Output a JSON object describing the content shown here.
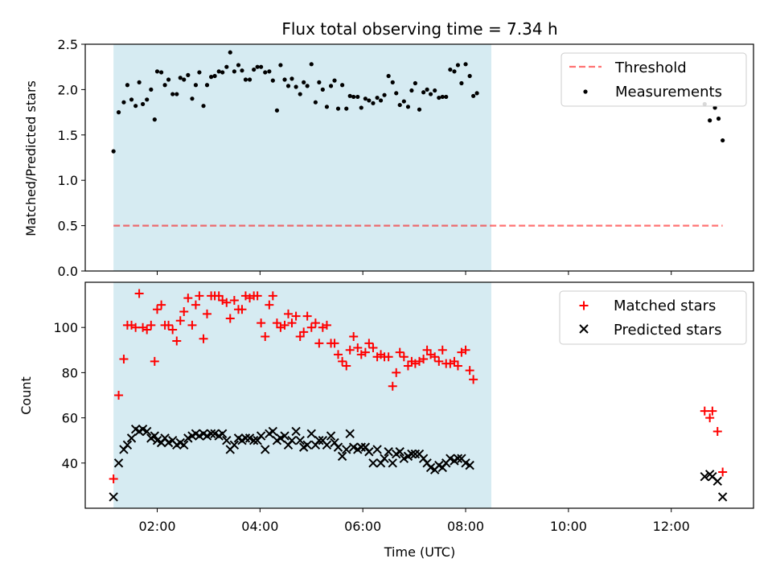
{
  "chart_data": {
    "type": "scatter",
    "title": "Flux total observing time = 7.34 h",
    "xlabel": "Time (UTC)",
    "x_ticks": [
      {
        "h": 2,
        "label": "02:00"
      },
      {
        "h": 4,
        "label": "04:00"
      },
      {
        "h": 6,
        "label": "06:00"
      },
      {
        "h": 8,
        "label": "08:00"
      },
      {
        "h": 10,
        "label": "10:00"
      },
      {
        "h": 12,
        "label": "12:00"
      }
    ],
    "xlim": [
      0.6,
      13.6
    ],
    "observing_window": [
      1.15,
      8.5
    ],
    "colors": {
      "span": "#add8e6",
      "threshold": "#ff0000",
      "measurements": "#000000",
      "matched": "#ff0000",
      "predicted": "#000000"
    },
    "top": {
      "ylabel": "Matched/Predicted stars",
      "ylim": [
        0,
        2.5
      ],
      "y_ticks": [
        "0.0",
        "0.5",
        "1.0",
        "1.5",
        "2.0",
        "2.5"
      ],
      "threshold": {
        "label": "Threshold",
        "value": 0.5,
        "x_range": [
          1.15,
          13.0
        ]
      },
      "measurements_label": "Measurements",
      "measurements": [
        [
          1.15,
          1.32
        ],
        [
          1.25,
          1.75
        ],
        [
          1.35,
          1.86
        ],
        [
          1.42,
          2.05
        ],
        [
          1.5,
          1.89
        ],
        [
          1.58,
          1.82
        ],
        [
          1.65,
          2.08
        ],
        [
          1.72,
          1.84
        ],
        [
          1.8,
          1.89
        ],
        [
          1.88,
          2.0
        ],
        [
          1.95,
          1.67
        ],
        [
          2.0,
          2.2
        ],
        [
          2.08,
          2.19
        ],
        [
          2.15,
          2.05
        ],
        [
          2.22,
          2.11
        ],
        [
          2.3,
          1.95
        ],
        [
          2.38,
          1.95
        ],
        [
          2.45,
          2.13
        ],
        [
          2.52,
          2.11
        ],
        [
          2.6,
          2.16
        ],
        [
          2.68,
          1.9
        ],
        [
          2.75,
          2.05
        ],
        [
          2.82,
          2.19
        ],
        [
          2.9,
          1.82
        ],
        [
          2.97,
          2.05
        ],
        [
          3.05,
          2.14
        ],
        [
          3.12,
          2.15
        ],
        [
          3.2,
          2.2
        ],
        [
          3.27,
          2.19
        ],
        [
          3.35,
          2.25
        ],
        [
          3.42,
          2.41
        ],
        [
          3.5,
          2.2
        ],
        [
          3.58,
          2.27
        ],
        [
          3.65,
          2.21
        ],
        [
          3.72,
          2.11
        ],
        [
          3.8,
          2.11
        ],
        [
          3.88,
          2.22
        ],
        [
          3.95,
          2.25
        ],
        [
          4.02,
          2.25
        ],
        [
          4.1,
          2.19
        ],
        [
          4.18,
          2.2
        ],
        [
          4.25,
          2.1
        ],
        [
          4.33,
          1.77
        ],
        [
          4.4,
          2.27
        ],
        [
          4.48,
          2.11
        ],
        [
          4.55,
          2.04
        ],
        [
          4.62,
          2.12
        ],
        [
          4.7,
          2.03
        ],
        [
          4.78,
          1.95
        ],
        [
          4.85,
          2.08
        ],
        [
          4.92,
          2.04
        ],
        [
          5.0,
          2.28
        ],
        [
          5.08,
          1.86
        ],
        [
          5.15,
          2.08
        ],
        [
          5.22,
          2.0
        ],
        [
          5.3,
          1.81
        ],
        [
          5.38,
          2.04
        ],
        [
          5.45,
          2.1
        ],
        [
          5.52,
          1.79
        ],
        [
          5.6,
          2.05
        ],
        [
          5.68,
          1.79
        ],
        [
          5.75,
          1.93
        ],
        [
          5.82,
          1.92
        ],
        [
          5.9,
          1.92
        ],
        [
          5.97,
          1.8
        ],
        [
          6.05,
          1.9
        ],
        [
          6.12,
          1.88
        ],
        [
          6.2,
          1.85
        ],
        [
          6.28,
          1.91
        ],
        [
          6.35,
          1.88
        ],
        [
          6.42,
          1.94
        ],
        [
          6.5,
          2.15
        ],
        [
          6.58,
          2.08
        ],
        [
          6.65,
          1.96
        ],
        [
          6.72,
          1.83
        ],
        [
          6.8,
          1.87
        ],
        [
          6.88,
          1.81
        ],
        [
          6.95,
          1.99
        ],
        [
          7.02,
          2.07
        ],
        [
          7.1,
          1.78
        ],
        [
          7.18,
          1.97
        ],
        [
          7.25,
          2.0
        ],
        [
          7.32,
          1.95
        ],
        [
          7.4,
          1.99
        ],
        [
          7.48,
          1.91
        ],
        [
          7.55,
          1.92
        ],
        [
          7.62,
          1.92
        ],
        [
          7.7,
          2.22
        ],
        [
          7.78,
          2.2
        ],
        [
          7.85,
          2.27
        ],
        [
          7.92,
          2.07
        ],
        [
          8.0,
          2.28
        ],
        [
          8.08,
          2.15
        ],
        [
          8.15,
          1.93
        ],
        [
          8.22,
          1.96
        ],
        [
          12.65,
          1.84
        ],
        [
          12.75,
          1.66
        ],
        [
          12.85,
          1.8
        ],
        [
          12.92,
          1.68
        ],
        [
          13.0,
          1.44
        ]
      ]
    },
    "bottom": {
      "ylabel": "Count",
      "ylim": [
        20,
        120
      ],
      "y_ticks": [
        "40",
        "60",
        "80",
        "100"
      ],
      "matched_label": "Matched stars",
      "predicted_label": "Predicted stars",
      "matched": [
        [
          1.15,
          33
        ],
        [
          1.25,
          70
        ],
        [
          1.35,
          86
        ],
        [
          1.42,
          101
        ],
        [
          1.5,
          101
        ],
        [
          1.58,
          100
        ],
        [
          1.65,
          115
        ],
        [
          1.72,
          100
        ],
        [
          1.8,
          99
        ],
        [
          1.88,
          101
        ],
        [
          1.95,
          85
        ],
        [
          2.0,
          108
        ],
        [
          2.08,
          110
        ],
        [
          2.15,
          101
        ],
        [
          2.22,
          101
        ],
        [
          2.3,
          99
        ],
        [
          2.38,
          94
        ],
        [
          2.45,
          103
        ],
        [
          2.52,
          107
        ],
        [
          2.6,
          113
        ],
        [
          2.68,
          101
        ],
        [
          2.75,
          110
        ],
        [
          2.82,
          114
        ],
        [
          2.9,
          95
        ],
        [
          2.97,
          106
        ],
        [
          3.05,
          114
        ],
        [
          3.12,
          114
        ],
        [
          3.2,
          114
        ],
        [
          3.27,
          112
        ],
        [
          3.35,
          111
        ],
        [
          3.42,
          104
        ],
        [
          3.5,
          112
        ],
        [
          3.58,
          108
        ],
        [
          3.65,
          108
        ],
        [
          3.72,
          114
        ],
        [
          3.8,
          113
        ],
        [
          3.88,
          114
        ],
        [
          3.95,
          114
        ],
        [
          4.02,
          102
        ],
        [
          4.1,
          96
        ],
        [
          4.18,
          110
        ],
        [
          4.25,
          114
        ],
        [
          4.33,
          102
        ],
        [
          4.4,
          100
        ],
        [
          4.48,
          101
        ],
        [
          4.55,
          106
        ],
        [
          4.62,
          102
        ],
        [
          4.7,
          105
        ],
        [
          4.78,
          96
        ],
        [
          4.85,
          98
        ],
        [
          4.92,
          105
        ],
        [
          5.0,
          100
        ],
        [
          5.08,
          102
        ],
        [
          5.15,
          93
        ],
        [
          5.22,
          100
        ],
        [
          5.3,
          101
        ],
        [
          5.38,
          93
        ],
        [
          5.45,
          93
        ],
        [
          5.52,
          88
        ],
        [
          5.6,
          85
        ],
        [
          5.68,
          83
        ],
        [
          5.75,
          90
        ],
        [
          5.82,
          96
        ],
        [
          5.9,
          91
        ],
        [
          5.97,
          88
        ],
        [
          6.05,
          89
        ],
        [
          6.12,
          93
        ],
        [
          6.2,
          91
        ],
        [
          6.28,
          87
        ],
        [
          6.35,
          88
        ],
        [
          6.42,
          87
        ],
        [
          6.5,
          87
        ],
        [
          6.58,
          74
        ],
        [
          6.65,
          80
        ],
        [
          6.72,
          89
        ],
        [
          6.8,
          87
        ],
        [
          6.88,
          83
        ],
        [
          6.95,
          85
        ],
        [
          7.02,
          84
        ],
        [
          7.1,
          85
        ],
        [
          7.18,
          86
        ],
        [
          7.25,
          90
        ],
        [
          7.32,
          88
        ],
        [
          7.4,
          87
        ],
        [
          7.48,
          85
        ],
        [
          7.55,
          90
        ],
        [
          7.62,
          84
        ],
        [
          7.7,
          84
        ],
        [
          7.78,
          85
        ],
        [
          7.85,
          83
        ],
        [
          7.92,
          89
        ],
        [
          8.0,
          90
        ],
        [
          8.08,
          81
        ],
        [
          8.15,
          77
        ],
        [
          12.65,
          63
        ],
        [
          12.75,
          60
        ],
        [
          12.8,
          63
        ],
        [
          12.9,
          54
        ],
        [
          13.0,
          36
        ]
      ],
      "predicted": [
        [
          1.15,
          25
        ],
        [
          1.25,
          40
        ],
        [
          1.35,
          46
        ],
        [
          1.42,
          48
        ],
        [
          1.5,
          51
        ],
        [
          1.58,
          55
        ],
        [
          1.65,
          54
        ],
        [
          1.72,
          55
        ],
        [
          1.8,
          54
        ],
        [
          1.88,
          51
        ],
        [
          1.95,
          52
        ],
        [
          2.0,
          50
        ],
        [
          2.08,
          49
        ],
        [
          2.15,
          51
        ],
        [
          2.22,
          49
        ],
        [
          2.3,
          50
        ],
        [
          2.38,
          48
        ],
        [
          2.45,
          49
        ],
        [
          2.52,
          48
        ],
        [
          2.6,
          51
        ],
        [
          2.68,
          52
        ],
        [
          2.75,
          53
        ],
        [
          2.82,
          52
        ],
        [
          2.9,
          53
        ],
        [
          2.97,
          52
        ],
        [
          3.05,
          53
        ],
        [
          3.12,
          53
        ],
        [
          3.2,
          52
        ],
        [
          3.27,
          53
        ],
        [
          3.35,
          50
        ],
        [
          3.42,
          46
        ],
        [
          3.5,
          48
        ],
        [
          3.58,
          51
        ],
        [
          3.65,
          50
        ],
        [
          3.72,
          51
        ],
        [
          3.8,
          51
        ],
        [
          3.88,
          50
        ],
        [
          3.95,
          50
        ],
        [
          4.02,
          52
        ],
        [
          4.1,
          46
        ],
        [
          4.18,
          53
        ],
        [
          4.25,
          54
        ],
        [
          4.33,
          50
        ],
        [
          4.4,
          51
        ],
        [
          4.48,
          52
        ],
        [
          4.55,
          48
        ],
        [
          4.62,
          50
        ],
        [
          4.7,
          54
        ],
        [
          4.78,
          50
        ],
        [
          4.85,
          47
        ],
        [
          4.92,
          48
        ],
        [
          5.0,
          53
        ],
        [
          5.08,
          48
        ],
        [
          5.15,
          50
        ],
        [
          5.22,
          50
        ],
        [
          5.3,
          48
        ],
        [
          5.38,
          52
        ],
        [
          5.45,
          49
        ],
        [
          5.52,
          47
        ],
        [
          5.6,
          43
        ],
        [
          5.68,
          46
        ],
        [
          5.75,
          53
        ],
        [
          5.82,
          47
        ],
        [
          5.9,
          46
        ],
        [
          5.97,
          47
        ],
        [
          6.05,
          47
        ],
        [
          6.12,
          45
        ],
        [
          6.2,
          40
        ],
        [
          6.28,
          46
        ],
        [
          6.35,
          40
        ],
        [
          6.42,
          42
        ],
        [
          6.5,
          45
        ],
        [
          6.58,
          40
        ],
        [
          6.65,
          44
        ],
        [
          6.72,
          45
        ],
        [
          6.8,
          42
        ],
        [
          6.88,
          43
        ],
        [
          6.95,
          44
        ],
        [
          7.02,
          44
        ],
        [
          7.1,
          44
        ],
        [
          7.18,
          42
        ],
        [
          7.25,
          40
        ],
        [
          7.32,
          38
        ],
        [
          7.4,
          37
        ],
        [
          7.48,
          39
        ],
        [
          7.55,
          38
        ],
        [
          7.62,
          40
        ],
        [
          7.7,
          42
        ],
        [
          7.78,
          41
        ],
        [
          7.85,
          42
        ],
        [
          7.92,
          42
        ],
        [
          8.0,
          40
        ],
        [
          8.08,
          39
        ],
        [
          12.65,
          34
        ],
        [
          12.75,
          35
        ],
        [
          12.8,
          34
        ],
        [
          12.9,
          32
        ],
        [
          13.0,
          25
        ]
      ]
    }
  }
}
